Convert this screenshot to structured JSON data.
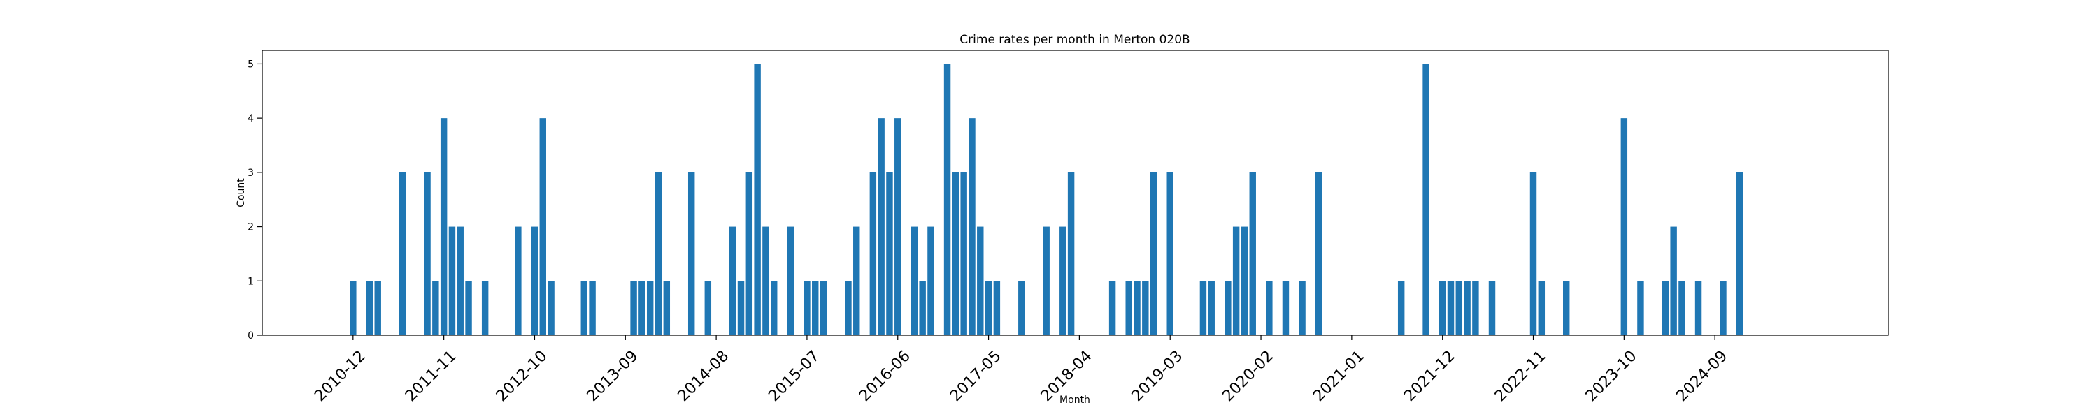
{
  "chart_data": {
    "type": "bar",
    "title": "Crime rates per month in Merton 020B",
    "xlabel": "Month",
    "ylabel": "Count",
    "ylim": [
      0,
      5.25
    ],
    "yticks": [
      0,
      1,
      2,
      3,
      4,
      5
    ],
    "xlim": [
      "2010-01",
      "2026-06"
    ],
    "xticks": [
      "2010-12",
      "2011-11",
      "2012-10",
      "2013-09",
      "2014-08",
      "2015-07",
      "2016-06",
      "2017-05",
      "2018-04",
      "2019-03",
      "2020-02",
      "2021-01",
      "2021-12",
      "2022-11",
      "2023-10",
      "2024-09"
    ],
    "grid": false,
    "bar_color": "#1f77b4",
    "series": [
      {
        "x": [
          "2010-12",
          "2011-02",
          "2011-03",
          "2011-06",
          "2011-09",
          "2011-10",
          "2011-11",
          "2011-12",
          "2012-01",
          "2012-02",
          "2012-04",
          "2012-08",
          "2012-10",
          "2012-11",
          "2012-12",
          "2013-04",
          "2013-05",
          "2013-10",
          "2013-11",
          "2013-12",
          "2014-01",
          "2014-02",
          "2014-05",
          "2014-07",
          "2014-10",
          "2014-11",
          "2014-12",
          "2015-01",
          "2015-02",
          "2015-03",
          "2015-05",
          "2015-07",
          "2015-08",
          "2015-09",
          "2015-12",
          "2016-01",
          "2016-03",
          "2016-04",
          "2016-05",
          "2016-06",
          "2016-08",
          "2016-09",
          "2016-10",
          "2016-12",
          "2017-01",
          "2017-02",
          "2017-03",
          "2017-04",
          "2017-05",
          "2017-06",
          "2017-09",
          "2017-12",
          "2018-02",
          "2018-03",
          "2018-08",
          "2018-10",
          "2018-11",
          "2018-12",
          "2019-01",
          "2019-03",
          "2019-07",
          "2019-08",
          "2019-10",
          "2019-11",
          "2019-12",
          "2020-01",
          "2020-03",
          "2020-05",
          "2020-07",
          "2020-09",
          "2021-07",
          "2021-10",
          "2021-12",
          "2022-01",
          "2022-02",
          "2022-03",
          "2022-04",
          "2022-06",
          "2022-11",
          "2022-12",
          "2023-03",
          "2023-10",
          "2023-12",
          "2024-03",
          "2024-04",
          "2024-05",
          "2024-07",
          "2024-10",
          "2024-12"
        ],
        "values": [
          1,
          1,
          1,
          3,
          3,
          1,
          4,
          2,
          2,
          1,
          1,
          2,
          2,
          4,
          1,
          1,
          1,
          1,
          1,
          1,
          3,
          1,
          3,
          1,
          2,
          1,
          3,
          5,
          2,
          1,
          2,
          1,
          1,
          1,
          1,
          2,
          3,
          4,
          3,
          4,
          2,
          1,
          2,
          5,
          3,
          3,
          4,
          2,
          1,
          1,
          1,
          2,
          2,
          3,
          1,
          1,
          1,
          1,
          3,
          3,
          1,
          1,
          1,
          2,
          2,
          3,
          1,
          1,
          1,
          3,
          1,
          5,
          1,
          1,
          1,
          1,
          1,
          1,
          3,
          1,
          1,
          4,
          1,
          1,
          2,
          1,
          1,
          1,
          3
        ]
      }
    ]
  }
}
